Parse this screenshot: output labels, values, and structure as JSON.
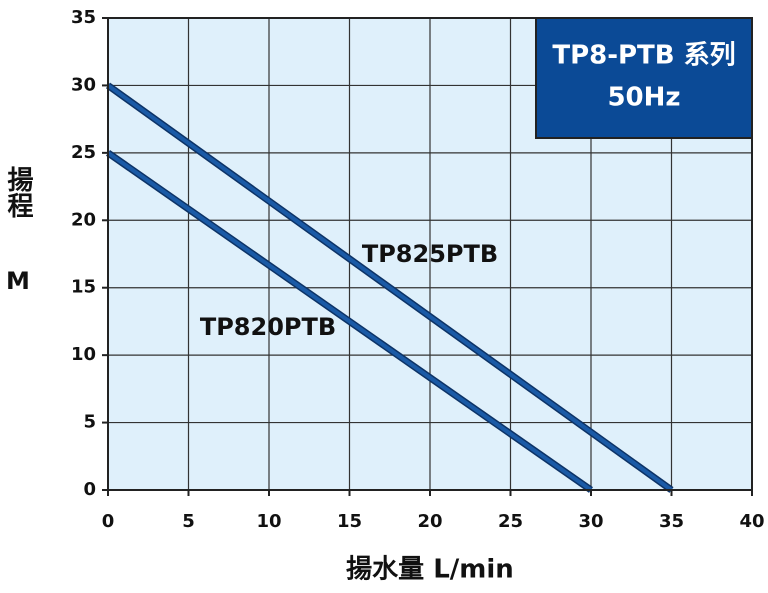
{
  "chart_data": {
    "type": "line",
    "title": "TP8-PTB 系列",
    "subtitle": "50Hz",
    "xlabel": "揚水量 L/min",
    "ylabel": "揚程",
    "yunit": "M",
    "series": [
      {
        "name": "TP825PTB",
        "color": "#1a5aa6",
        "x": [
          0,
          35
        ],
        "values": [
          30,
          0
        ]
      },
      {
        "name": "TP820PTB",
        "color": "#1a5aa6",
        "x": [
          0,
          30
        ],
        "values": [
          25,
          0
        ]
      }
    ],
    "xlim": [
      0,
      40
    ],
    "xticks": [
      0,
      5,
      10,
      15,
      20,
      25,
      30,
      35,
      40
    ],
    "ylim": [
      0,
      35
    ],
    "yticks": [
      0,
      5,
      10,
      15,
      20,
      25,
      30,
      35
    ],
    "grid": true
  }
}
